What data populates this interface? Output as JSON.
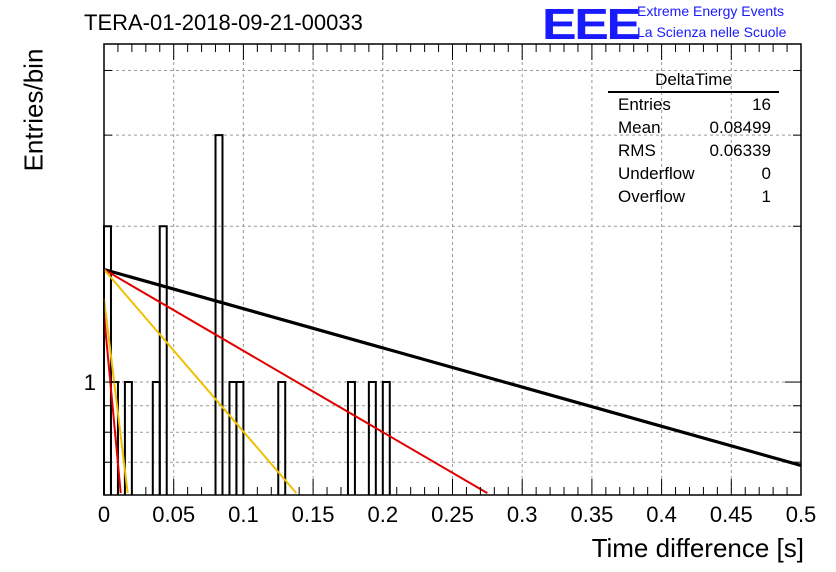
{
  "header": {
    "run_title": "TERA-01-2018-09-21-00033",
    "logo_mark": "EEE",
    "logo_line1": "Extreme Energy Events",
    "logo_line2": "La Scienza nelle Scuole"
  },
  "chart_data": {
    "type": "bar",
    "xlabel": "Time difference [s]",
    "ylabel": "Entries/bin",
    "xlim": [
      0,
      0.5
    ],
    "y_scale": "log",
    "grid": true,
    "x_tick_labels": [
      "0",
      "0.05",
      "0.1",
      "0.15",
      "0.2",
      "0.25",
      "0.3",
      "0.35",
      "0.4",
      "0.45",
      "0.5"
    ],
    "y_tick_labels": [
      "1"
    ],
    "bin_width": 0.005,
    "bins": [
      {
        "x": 0.0,
        "count": 2
      },
      {
        "x": 0.005,
        "count": 1
      },
      {
        "x": 0.015,
        "count": 1
      },
      {
        "x": 0.035,
        "count": 1
      },
      {
        "x": 0.04,
        "count": 2
      },
      {
        "x": 0.08,
        "count": 3
      },
      {
        "x": 0.09,
        "count": 1
      },
      {
        "x": 0.095,
        "count": 1
      },
      {
        "x": 0.125,
        "count": 1
      },
      {
        "x": 0.175,
        "count": 1
      },
      {
        "x": 0.19,
        "count": 1
      },
      {
        "x": 0.2,
        "count": 1
      }
    ],
    "fit_lines": [
      {
        "color": "#000000",
        "x": [
          0.0,
          0.5
        ],
        "y": [
          1.65,
          0.69
        ]
      },
      {
        "color": "#e00000",
        "x": [
          0.0,
          0.275
        ],
        "y": [
          1.65,
          0.61
        ]
      },
      {
        "color": "#f0c000",
        "x": [
          0.0,
          0.138
        ],
        "y": [
          1.65,
          0.61
        ]
      },
      {
        "color": "#f0c000",
        "x": [
          0.0,
          0.017
        ],
        "y": [
          1.45,
          0.61
        ]
      },
      {
        "color": "#e00000",
        "x": [
          0.0,
          0.012
        ],
        "y": [
          1.35,
          0.61
        ]
      }
    ],
    "stats_box": {
      "title": "DeltaTime",
      "rows": [
        {
          "label": "Entries",
          "value": "16"
        },
        {
          "label": "Mean",
          "value": "0.08499"
        },
        {
          "label": "RMS",
          "value": "0.06339"
        },
        {
          "label": "Underflow",
          "value": "0"
        },
        {
          "label": "Overflow",
          "value": "1"
        }
      ]
    }
  }
}
